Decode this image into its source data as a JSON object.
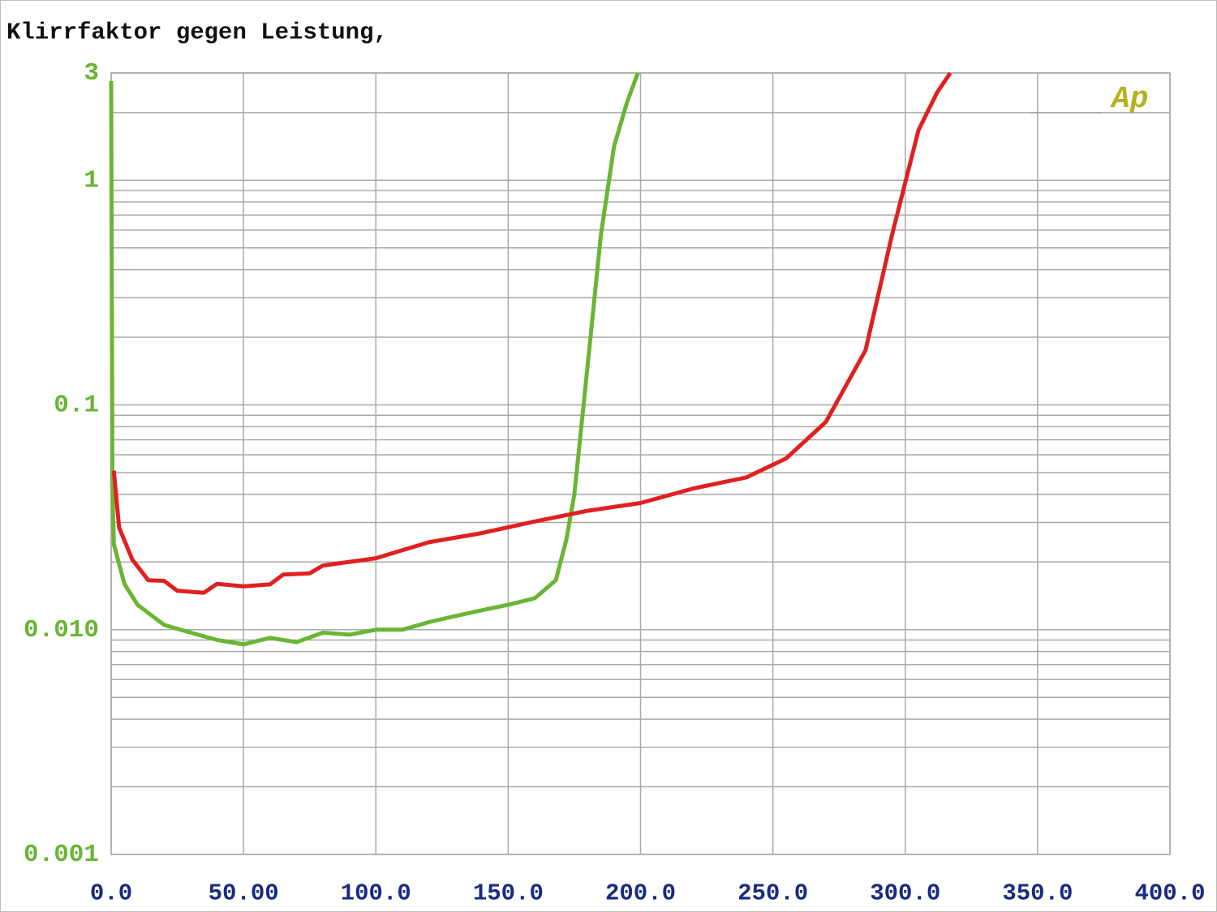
{
  "chart_data": {
    "type": "line",
    "title": "Klirrfaktor gegen Leistung,",
    "annotation": "Ap",
    "ylog": true,
    "grid": true,
    "xlim": [
      0,
      400
    ],
    "xticks": [
      {
        "value": 0,
        "label": "0.0"
      },
      {
        "value": 50,
        "label": "50.00"
      },
      {
        "value": 100,
        "label": "100.0"
      },
      {
        "value": 150,
        "label": "150.0"
      },
      {
        "value": 200,
        "label": "200.0"
      },
      {
        "value": 250,
        "label": "250.0"
      },
      {
        "value": 300,
        "label": "300.0"
      },
      {
        "value": 350,
        "label": "350.0"
      },
      {
        "value": 400,
        "label": "400.0"
      }
    ],
    "ylim": [
      0.001,
      3
    ],
    "yticks": [
      3,
      1,
      0.1,
      {
        "value": 0.01,
        "label": "0.010"
      },
      0.001
    ],
    "series": [
      {
        "color": "#6ab534",
        "x": [
          0,
          0.5,
          1,
          5,
          10,
          20,
          30,
          40,
          50,
          60,
          70,
          80,
          90,
          100,
          110,
          120,
          130,
          140,
          150,
          160,
          168,
          172,
          175,
          180,
          185,
          190,
          195,
          199
        ],
        "values": [
          2.76,
          0.043,
          0.024,
          0.016,
          0.0129,
          0.0105,
          0.0097,
          0.009,
          0.0086,
          0.0092,
          0.0088,
          0.0097,
          0.0095,
          0.01,
          0.01,
          0.0108,
          0.0115,
          0.0122,
          0.0129,
          0.0138,
          0.0166,
          0.0252,
          0.04,
          0.15,
          0.57,
          1.42,
          2.24,
          3
        ]
      },
      {
        "color": "#e02020",
        "x": [
          1,
          3,
          8,
          14,
          20,
          25,
          35,
          40,
          50,
          60,
          65,
          75,
          80,
          100,
          120,
          140,
          160,
          180,
          200,
          220,
          240,
          255,
          270,
          285,
          295,
          305,
          312,
          317
        ],
        "values": [
          0.051,
          0.0285,
          0.0205,
          0.0166,
          0.0165,
          0.0149,
          0.0146,
          0.016,
          0.0156,
          0.0159,
          0.0176,
          0.0178,
          0.0193,
          0.0208,
          0.0245,
          0.0269,
          0.0303,
          0.0338,
          0.0366,
          0.0425,
          0.0476,
          0.0578,
          0.084,
          0.175,
          0.57,
          1.67,
          2.45,
          3
        ]
      }
    ]
  }
}
